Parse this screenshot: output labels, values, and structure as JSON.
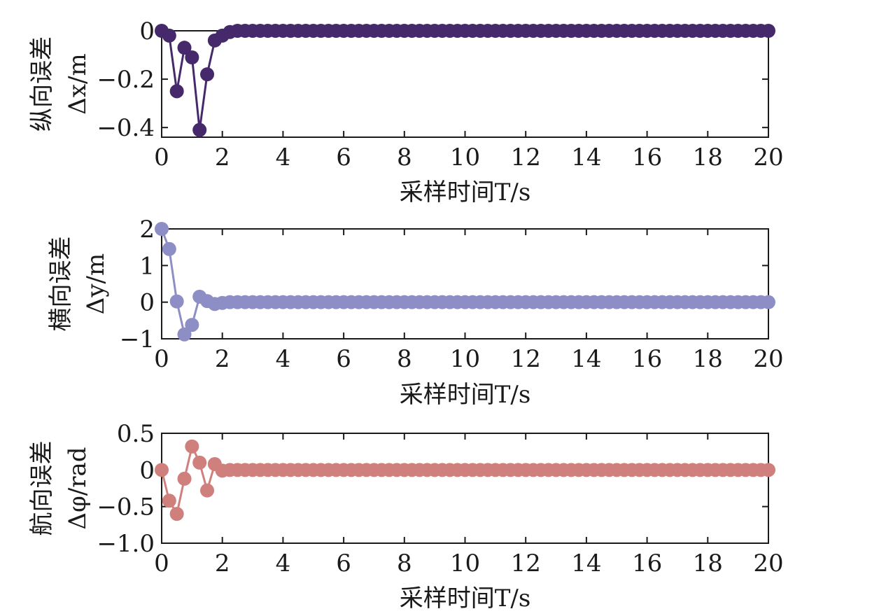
{
  "chart_data": [
    {
      "type": "line",
      "color": "#45296b",
      "ylabel": [
        "纵向误差",
        "Δx/m"
      ],
      "xlabel": "采样时间T/s",
      "xlim": [
        0,
        20
      ],
      "ylim": [
        -0.44,
        0
      ],
      "xticks": [
        0,
        2,
        4,
        6,
        8,
        10,
        12,
        14,
        16,
        18,
        20
      ],
      "xtick_labels": [
        "0",
        "2",
        "4",
        "6",
        "8",
        "10",
        "12",
        "14",
        "16",
        "18",
        "20"
      ],
      "yticks": [
        0,
        -0.2,
        -0.4
      ],
      "ytick_labels": [
        "0",
        "−0.2",
        "−0.4"
      ],
      "series": [
        {
          "x": [
            0,
            0.25,
            0.5,
            0.75,
            1.0,
            1.25,
            1.5,
            1.75,
            2.0,
            2.25,
            2.5,
            2.75,
            3.0,
            3.25,
            3.5,
            3.75,
            4.0,
            4.25,
            4.5,
            4.75,
            5.0,
            5.25,
            5.5,
            5.75,
            6.0,
            6.25,
            6.5,
            6.75,
            7.0,
            7.25,
            7.5,
            7.75,
            8.0,
            8.25,
            8.5,
            8.75,
            9.0,
            9.25,
            9.5,
            9.75,
            10.0,
            10.25,
            10.5,
            10.75,
            11.0,
            11.25,
            11.5,
            11.75,
            12.0,
            12.25,
            12.5,
            12.75,
            13.0,
            13.25,
            13.5,
            13.75,
            14.0,
            14.25,
            14.5,
            14.75,
            15.0,
            15.25,
            15.5,
            15.75,
            16.0,
            16.25,
            16.5,
            16.75,
            17.0,
            17.25,
            17.5,
            17.75,
            18.0,
            18.25,
            18.5,
            18.75,
            19.0,
            19.25,
            19.5,
            19.75,
            20.0
          ],
          "y": [
            0,
            -0.02,
            -0.25,
            -0.07,
            -0.11,
            -0.41,
            -0.18,
            -0.04,
            -0.02,
            -0.005,
            0,
            0,
            0,
            0,
            0,
            0,
            0,
            0,
            0,
            0,
            0,
            0,
            0,
            0,
            0,
            0,
            0,
            0,
            0,
            0,
            0,
            0,
            0,
            0,
            0,
            0,
            0,
            0,
            0,
            0,
            0,
            0,
            0,
            0,
            0,
            0,
            0,
            0,
            0,
            0,
            0,
            0,
            0,
            0,
            0,
            0,
            0,
            0,
            0,
            0,
            0,
            0,
            0,
            0,
            0,
            0,
            0,
            0,
            0,
            0,
            0,
            0,
            0,
            0,
            0,
            0,
            0,
            0,
            0,
            0,
            0
          ]
        }
      ]
    },
    {
      "type": "line",
      "color": "#8e8ec6",
      "ylabel": [
        "横向误差",
        "Δy/m"
      ],
      "xlabel": "采样时间T/s",
      "xlim": [
        0,
        20
      ],
      "ylim": [
        -1,
        2
      ],
      "xticks": [
        0,
        2,
        4,
        6,
        8,
        10,
        12,
        14,
        16,
        18,
        20
      ],
      "xtick_labels": [
        "0",
        "2",
        "4",
        "6",
        "8",
        "10",
        "12",
        "14",
        "16",
        "18",
        "20"
      ],
      "yticks": [
        2,
        1,
        0,
        -1
      ],
      "ytick_labels": [
        "2",
        "1",
        "0",
        "−1"
      ],
      "series": [
        {
          "x": [
            0,
            0.25,
            0.5,
            0.75,
            1.0,
            1.25,
            1.5,
            1.75,
            2.0,
            2.25,
            2.5,
            2.75,
            3.0,
            3.25,
            3.5,
            3.75,
            4.0,
            4.25,
            4.5,
            4.75,
            5.0,
            5.25,
            5.5,
            5.75,
            6.0,
            6.25,
            6.5,
            6.75,
            7.0,
            7.25,
            7.5,
            7.75,
            8.0,
            8.25,
            8.5,
            8.75,
            9.0,
            9.25,
            9.5,
            9.75,
            10.0,
            10.25,
            10.5,
            10.75,
            11.0,
            11.25,
            11.5,
            11.75,
            12.0,
            12.25,
            12.5,
            12.75,
            13.0,
            13.25,
            13.5,
            13.75,
            14.0,
            14.25,
            14.5,
            14.75,
            15.0,
            15.25,
            15.5,
            15.75,
            16.0,
            16.25,
            16.5,
            16.75,
            17.0,
            17.25,
            17.5,
            17.75,
            18.0,
            18.25,
            18.5,
            18.75,
            19.0,
            19.25,
            19.5,
            19.75,
            20.0
          ],
          "y": [
            2.0,
            1.45,
            0.02,
            -0.88,
            -0.62,
            0.15,
            0.03,
            -0.05,
            -0.02,
            0,
            0,
            0,
            0,
            0,
            0,
            0,
            0,
            0,
            0,
            0,
            0,
            0,
            0,
            0,
            0,
            0,
            0,
            0,
            0,
            0,
            0,
            0,
            0,
            0,
            0,
            0,
            0,
            0,
            0,
            0,
            0,
            0,
            0,
            0,
            0,
            0,
            0,
            0,
            0,
            0,
            0,
            0,
            0,
            0,
            0,
            0,
            0,
            0,
            0,
            0,
            0,
            0,
            0,
            0,
            0,
            0,
            0,
            0,
            0,
            0,
            0,
            0,
            0,
            0,
            0,
            0,
            0,
            0,
            0,
            0,
            0
          ]
        }
      ]
    },
    {
      "type": "line",
      "color": "#d0807c",
      "ylabel": [
        "航向误差",
        "Δφ/rad"
      ],
      "xlabel": "采样时间T/s",
      "xlim": [
        0,
        20
      ],
      "ylim": [
        -1.0,
        0.5
      ],
      "xticks": [
        0,
        2,
        4,
        6,
        8,
        10,
        12,
        14,
        16,
        18,
        20
      ],
      "xtick_labels": [
        "0",
        "2",
        "4",
        "6",
        "8",
        "10",
        "12",
        "14",
        "16",
        "18",
        "20"
      ],
      "yticks": [
        0.5,
        0,
        -0.5,
        -1.0
      ],
      "ytick_labels": [
        "0.5",
        "0",
        "−0.5",
        "−1.0"
      ],
      "series": [
        {
          "x": [
            0,
            0.25,
            0.5,
            0.75,
            1.0,
            1.25,
            1.5,
            1.75,
            2.0,
            2.25,
            2.5,
            2.75,
            3.0,
            3.25,
            3.5,
            3.75,
            4.0,
            4.25,
            4.5,
            4.75,
            5.0,
            5.25,
            5.5,
            5.75,
            6.0,
            6.25,
            6.5,
            6.75,
            7.0,
            7.25,
            7.5,
            7.75,
            8.0,
            8.25,
            8.5,
            8.75,
            9.0,
            9.25,
            9.5,
            9.75,
            10.0,
            10.25,
            10.5,
            10.75,
            11.0,
            11.25,
            11.5,
            11.75,
            12.0,
            12.25,
            12.5,
            12.75,
            13.0,
            13.25,
            13.5,
            13.75,
            14.0,
            14.25,
            14.5,
            14.75,
            15.0,
            15.25,
            15.5,
            15.75,
            16.0,
            16.25,
            16.5,
            16.75,
            17.0,
            17.25,
            17.5,
            17.75,
            18.0,
            18.25,
            18.5,
            18.75,
            19.0,
            19.25,
            19.5,
            19.75,
            20.0
          ],
          "y": [
            0,
            -0.42,
            -0.6,
            -0.12,
            0.32,
            0.1,
            -0.28,
            0.08,
            -0.01,
            0,
            0,
            0,
            0,
            0,
            0,
            0,
            0,
            0,
            0,
            0,
            0,
            0,
            0,
            0,
            0,
            0,
            0,
            0,
            0,
            0,
            0,
            0,
            0,
            0,
            0,
            0,
            0,
            0,
            0,
            0,
            0,
            0,
            0,
            0,
            0,
            0,
            0,
            0,
            0,
            0,
            0,
            0,
            0,
            0,
            0,
            0,
            0,
            0,
            0,
            0,
            0,
            0,
            0,
            0,
            0,
            0,
            0,
            0,
            0,
            0,
            0,
            0,
            0,
            0,
            0,
            0,
            0,
            0,
            0,
            0,
            0
          ]
        }
      ]
    }
  ]
}
